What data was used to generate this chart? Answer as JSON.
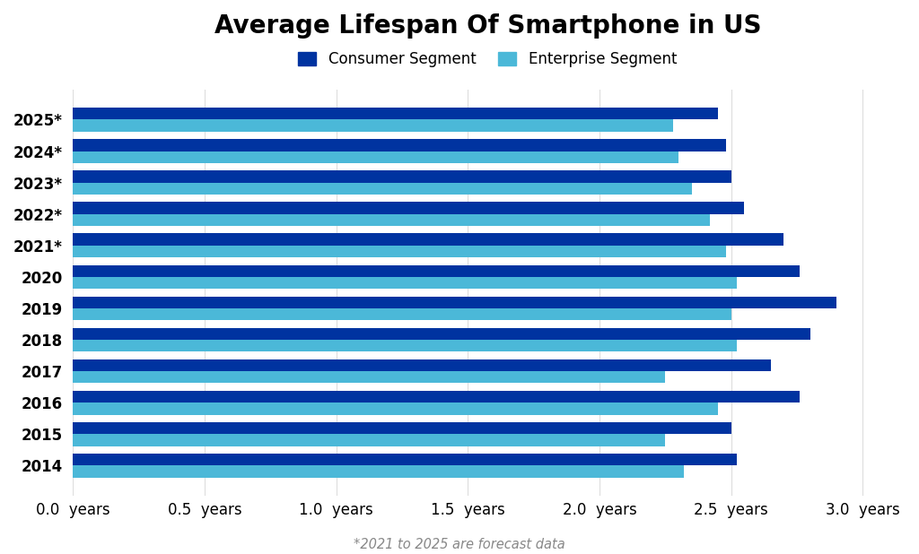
{
  "title": "Average Lifespan Of Smartphone in US",
  "footnote": "*2021 to 2025 are forecast data",
  "categories": [
    "2025*",
    "2024*",
    "2023*",
    "2022*",
    "2021*",
    "2020",
    "2019",
    "2018",
    "2017",
    "2016",
    "2015",
    "2014"
  ],
  "consumer_values": [
    2.45,
    2.48,
    2.5,
    2.55,
    2.7,
    2.76,
    2.9,
    2.8,
    2.65,
    2.76,
    2.5,
    2.52
  ],
  "enterprise_values": [
    2.28,
    2.3,
    2.35,
    2.42,
    2.48,
    2.52,
    2.5,
    2.52,
    2.25,
    2.45,
    2.25,
    2.32
  ],
  "consumer_color": "#0033A0",
  "enterprise_color": "#4BB8D8",
  "background_color": "#ffffff",
  "xlim": [
    0,
    3.15
  ],
  "xticks": [
    0.0,
    0.5,
    1.0,
    1.5,
    2.0,
    2.5,
    3.0
  ],
  "xtick_labels": [
    "0.0  years",
    "0.5  years",
    "1.0  years",
    "1.5  years",
    "2.0  years",
    "2.5  years",
    "3.0  years"
  ],
  "title_fontsize": 20,
  "legend_fontsize": 12,
  "tick_fontsize": 12,
  "bar_height": 0.38,
  "consumer_label": "Consumer Segment",
  "enterprise_label": "Enterprise Segment"
}
